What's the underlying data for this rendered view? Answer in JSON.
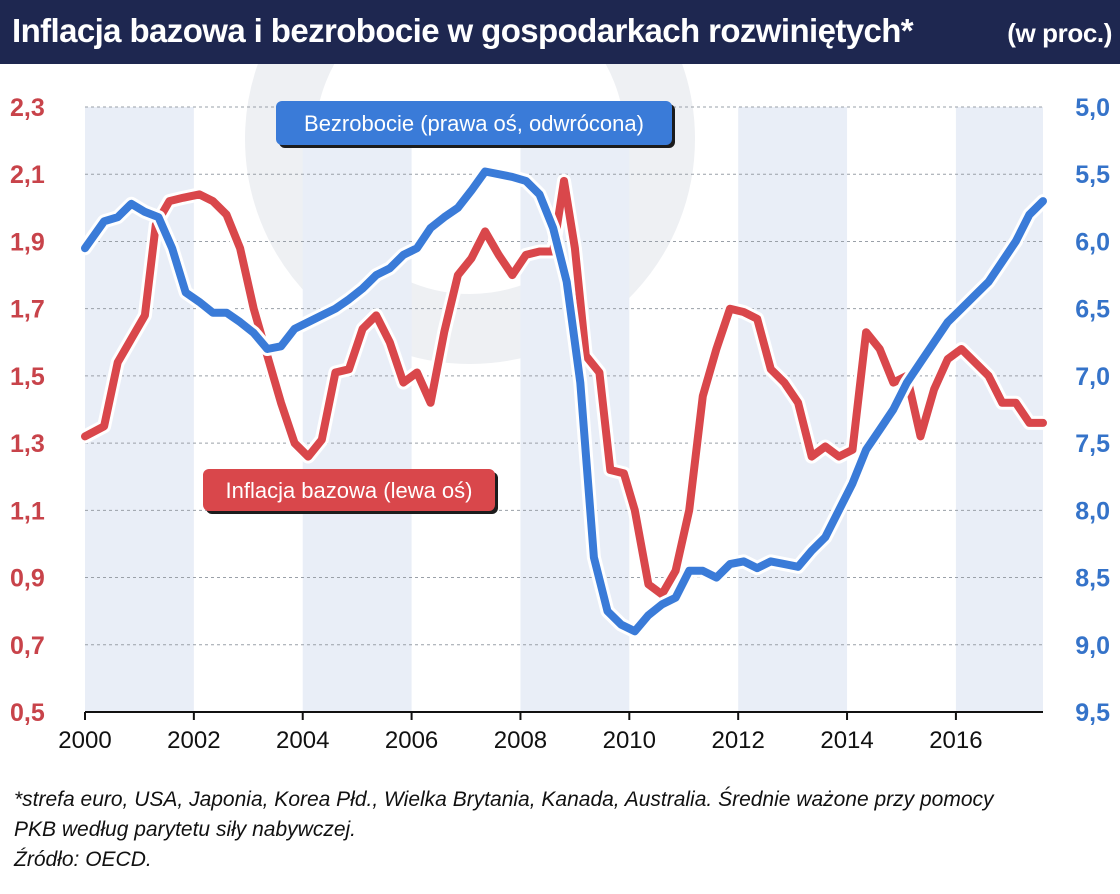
{
  "title": {
    "main": "Inflacja bazowa i bezrobocie w gospodarkach rozwiniętych*",
    "sub": "(w proc.)"
  },
  "colors": {
    "title_bg": "#1e2750",
    "inflation": "#d9474b",
    "unemployment": "#3a7bd8",
    "left_axis_text": "#c8434a",
    "right_axis_text": "#3573c9",
    "band": "#e9eef7"
  },
  "chart_data": {
    "type": "line",
    "x_range": [
      2000,
      2017.6
    ],
    "x_ticks": [
      "2000",
      "2002",
      "2004",
      "2006",
      "2008",
      "2010",
      "2012",
      "2014",
      "2016"
    ],
    "left_axis": {
      "ticks": [
        "2,3",
        "2,1",
        "1,9",
        "1,7",
        "1,5",
        "1,3",
        "1,1",
        "0,9",
        "0,7",
        "0,5"
      ],
      "range": [
        0.5,
        2.3
      ]
    },
    "right_axis": {
      "ticks": [
        "5,0",
        "5,5",
        "6,0",
        "6,5",
        "7,0",
        "7,5",
        "8,0",
        "8,5",
        "9,0",
        "9,5"
      ],
      "range": [
        5.0,
        9.5
      ],
      "inverted": true
    },
    "shaded_years": [
      [
        2000,
        2002
      ],
      [
        2004,
        2006
      ],
      [
        2008,
        2010
      ],
      [
        2012,
        2014
      ],
      [
        2016,
        2017.6
      ]
    ],
    "series": [
      {
        "name": "Inflacja bazowa (lewa oś)",
        "axis": "left",
        "points": [
          [
            2000.0,
            1.32
          ],
          [
            2000.35,
            1.35
          ],
          [
            2000.6,
            1.54
          ],
          [
            2000.85,
            1.61
          ],
          [
            2001.1,
            1.68
          ],
          [
            2001.3,
            1.95
          ],
          [
            2001.55,
            2.02
          ],
          [
            2001.8,
            2.03
          ],
          [
            2002.1,
            2.04
          ],
          [
            2002.35,
            2.02
          ],
          [
            2002.6,
            1.98
          ],
          [
            2002.85,
            1.88
          ],
          [
            2003.1,
            1.7
          ],
          [
            2003.35,
            1.56
          ],
          [
            2003.6,
            1.42
          ],
          [
            2003.85,
            1.3
          ],
          [
            2004.1,
            1.26
          ],
          [
            2004.35,
            1.31
          ],
          [
            2004.6,
            1.51
          ],
          [
            2004.85,
            1.52
          ],
          [
            2005.1,
            1.64
          ],
          [
            2005.35,
            1.68
          ],
          [
            2005.6,
            1.6
          ],
          [
            2005.85,
            1.48
          ],
          [
            2006.1,
            1.51
          ],
          [
            2006.35,
            1.42
          ],
          [
            2006.6,
            1.63
          ],
          [
            2006.85,
            1.8
          ],
          [
            2007.1,
            1.85
          ],
          [
            2007.35,
            1.93
          ],
          [
            2007.6,
            1.86
          ],
          [
            2007.85,
            1.8
          ],
          [
            2008.1,
            1.86
          ],
          [
            2008.35,
            1.87
          ],
          [
            2008.6,
            1.87
          ],
          [
            2008.8,
            2.08
          ],
          [
            2009.0,
            1.88
          ],
          [
            2009.2,
            1.56
          ],
          [
            2009.45,
            1.51
          ],
          [
            2009.65,
            1.22
          ],
          [
            2009.9,
            1.21
          ],
          [
            2010.1,
            1.1
          ],
          [
            2010.35,
            0.88
          ],
          [
            2010.6,
            0.85
          ],
          [
            2010.85,
            0.92
          ],
          [
            2011.1,
            1.1
          ],
          [
            2011.35,
            1.44
          ],
          [
            2011.6,
            1.58
          ],
          [
            2011.85,
            1.7
          ],
          [
            2012.1,
            1.69
          ],
          [
            2012.35,
            1.67
          ],
          [
            2012.6,
            1.52
          ],
          [
            2012.85,
            1.48
          ],
          [
            2013.1,
            1.42
          ],
          [
            2013.35,
            1.26
          ],
          [
            2013.6,
            1.29
          ],
          [
            2013.85,
            1.26
          ],
          [
            2014.1,
            1.28
          ],
          [
            2014.35,
            1.63
          ],
          [
            2014.6,
            1.58
          ],
          [
            2014.85,
            1.48
          ],
          [
            2015.1,
            1.5
          ],
          [
            2015.35,
            1.32
          ],
          [
            2015.6,
            1.46
          ],
          [
            2015.85,
            1.55
          ],
          [
            2016.1,
            1.58
          ],
          [
            2016.35,
            1.54
          ],
          [
            2016.6,
            1.5
          ],
          [
            2016.85,
            1.42
          ],
          [
            2017.1,
            1.42
          ],
          [
            2017.35,
            1.36
          ],
          [
            2017.6,
            1.36
          ]
        ]
      },
      {
        "name": "Bezrobocie (prawa oś, odwrócona)",
        "axis": "right",
        "points": [
          [
            2000.0,
            6.05
          ],
          [
            2000.35,
            5.85
          ],
          [
            2000.6,
            5.82
          ],
          [
            2000.85,
            5.72
          ],
          [
            2001.1,
            5.78
          ],
          [
            2001.35,
            5.82
          ],
          [
            2001.6,
            6.05
          ],
          [
            2001.85,
            6.38
          ],
          [
            2002.1,
            6.45
          ],
          [
            2002.35,
            6.53
          ],
          [
            2002.6,
            6.53
          ],
          [
            2002.85,
            6.6
          ],
          [
            2003.1,
            6.68
          ],
          [
            2003.35,
            6.8
          ],
          [
            2003.6,
            6.78
          ],
          [
            2003.85,
            6.65
          ],
          [
            2004.1,
            6.6
          ],
          [
            2004.35,
            6.55
          ],
          [
            2004.6,
            6.5
          ],
          [
            2004.85,
            6.43
          ],
          [
            2005.1,
            6.35
          ],
          [
            2005.35,
            6.25
          ],
          [
            2005.6,
            6.2
          ],
          [
            2005.85,
            6.1
          ],
          [
            2006.1,
            6.05
          ],
          [
            2006.35,
            5.9
          ],
          [
            2006.6,
            5.82
          ],
          [
            2006.85,
            5.75
          ],
          [
            2007.1,
            5.62
          ],
          [
            2007.35,
            5.48
          ],
          [
            2007.6,
            5.5
          ],
          [
            2007.85,
            5.52
          ],
          [
            2008.1,
            5.55
          ],
          [
            2008.35,
            5.65
          ],
          [
            2008.6,
            5.9
          ],
          [
            2008.85,
            6.3
          ],
          [
            2009.1,
            7.05
          ],
          [
            2009.35,
            8.35
          ],
          [
            2009.6,
            8.75
          ],
          [
            2009.85,
            8.85
          ],
          [
            2010.1,
            8.9
          ],
          [
            2010.35,
            8.78
          ],
          [
            2010.6,
            8.7
          ],
          [
            2010.85,
            8.65
          ],
          [
            2011.1,
            8.45
          ],
          [
            2011.35,
            8.45
          ],
          [
            2011.6,
            8.5
          ],
          [
            2011.85,
            8.4
          ],
          [
            2012.1,
            8.38
          ],
          [
            2012.35,
            8.43
          ],
          [
            2012.6,
            8.38
          ],
          [
            2012.85,
            8.4
          ],
          [
            2013.1,
            8.42
          ],
          [
            2013.35,
            8.3
          ],
          [
            2013.6,
            8.2
          ],
          [
            2013.85,
            8.0
          ],
          [
            2014.1,
            7.8
          ],
          [
            2014.35,
            7.55
          ],
          [
            2014.6,
            7.4
          ],
          [
            2014.85,
            7.25
          ],
          [
            2015.1,
            7.05
          ],
          [
            2015.35,
            6.9
          ],
          [
            2015.6,
            6.75
          ],
          [
            2015.85,
            6.6
          ],
          [
            2016.1,
            6.5
          ],
          [
            2016.35,
            6.4
          ],
          [
            2016.6,
            6.3
          ],
          [
            2016.85,
            6.15
          ],
          [
            2017.1,
            6.0
          ],
          [
            2017.35,
            5.8
          ],
          [
            2017.6,
            5.7
          ]
        ]
      }
    ],
    "annotations": {
      "unemployment_label": "Bezrobocie (prawa oś, odwrócona)",
      "inflation_label": "Inflacja bazowa (lewa oś)"
    }
  },
  "footnote": {
    "line1": "*strefa euro, USA, Japonia, Korea Płd., Wielka Brytania, Kanada, Australia. Średnie ważone przy pomocy",
    "line2": "PKB według parytetu siły nabywczej.",
    "source": "Źródło: OECD."
  }
}
